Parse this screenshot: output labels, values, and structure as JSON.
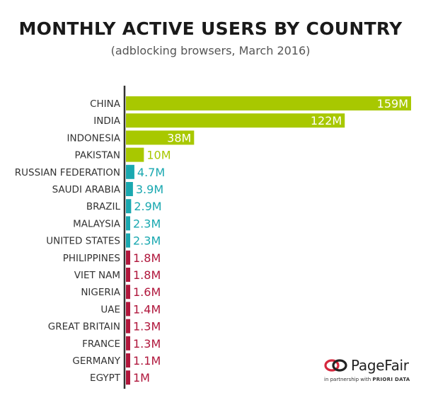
{
  "chart_data": {
    "type": "bar",
    "orientation": "horizontal",
    "title": "MONTHLY ACTIVE USERS BY COUNTRY",
    "subtitle": "(adblocking browsers, March 2016)",
    "categories": [
      "CHINA",
      "INDIA",
      "INDONESIA",
      "PAKISTAN",
      "RUSSIAN FEDERATION",
      "SAUDI ARABIA",
      "BRAZIL",
      "MALAYSIA",
      "UNITED STATES",
      "PHILIPPINES",
      "VIET NAM",
      "NIGERIA",
      "UAE",
      "GREAT BRITAIN",
      "FRANCE",
      "GERMANY",
      "EGYPT"
    ],
    "values": [
      159,
      122,
      38,
      10,
      4.7,
      3.9,
      2.9,
      2.3,
      2.3,
      1.8,
      1.8,
      1.6,
      1.4,
      1.3,
      1.3,
      1.1,
      1
    ],
    "data_labels": [
      "159M",
      "122M",
      "38M",
      "10M",
      "4.7M",
      "3.9M",
      "2.9M",
      "2.3M",
      "2.3M",
      "1.8M",
      "1.8M",
      "1.6M",
      "1.4M",
      "1.3M",
      "1.3M",
      "1.1M",
      "1M"
    ],
    "unit": "M",
    "xlim": [
      0,
      159
    ],
    "groups": [
      {
        "from": 0,
        "to": 3,
        "color": "#a8c800"
      },
      {
        "from": 4,
        "to": 8,
        "color": "#1aa8b0"
      },
      {
        "from": 9,
        "to": 16,
        "color": "#b0173c"
      }
    ],
    "grid": false,
    "legend": "none"
  },
  "brand": {
    "name": "PageFair",
    "tagline_prefix": "in partnership with",
    "tagline_partner": "PRIORI DATA",
    "logo_icon": "pagefair-logo-icon",
    "logo_color": "#d6283e"
  }
}
